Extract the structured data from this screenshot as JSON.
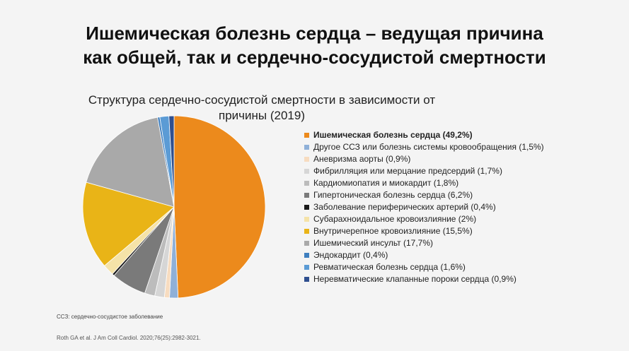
{
  "title_lines": [
    "Ишемическая болезнь сердца – ведущая причина",
    "как общей, так и сердечно-сосудистой смертности"
  ],
  "chart_title_lines": [
    "Структура сердечно-сосудистой смертности в зависимости от",
    "причины (2019)"
  ],
  "chart_data": {
    "type": "pie",
    "title": "Структура сердечно-сосудистой смертности в зависимости от причины (2019)",
    "legend_position": "right",
    "slices": [
      {
        "label": "Ишемическая болезнь сердца (49,2%)",
        "value": 49.2,
        "color": "#ec8a1c",
        "bold": true
      },
      {
        "label": "Другое ССЗ или болезнь системы кровообращения (1,5%)",
        "value": 1.5,
        "color": "#8fb0d8"
      },
      {
        "label": "Аневризма аорты (0,9%)",
        "value": 0.9,
        "color": "#f7dcc0"
      },
      {
        "label": "Фибрилляция или мерцание предсердий (1,7%)",
        "value": 1.7,
        "color": "#d6d6d6"
      },
      {
        "label": "Кардиомиопатия и миокардит (1,8%)",
        "value": 1.8,
        "color": "#bcbcbc"
      },
      {
        "label": "Гипертоническая болезнь сердца (6,2%)",
        "value": 6.2,
        "color": "#7a7a7a"
      },
      {
        "label": "Заболевание периферических артерий (0,4%)",
        "value": 0.4,
        "color": "#1a1a1a"
      },
      {
        "label": "Субарахноидальное кровоизлияние (2%)",
        "value": 2.0,
        "color": "#f5e3a8"
      },
      {
        "label": "Внутричерепное кровоизлияние (15,5%)",
        "value": 15.5,
        "color": "#e9b417"
      },
      {
        "label": "Ишемический инсульт (17,7%)",
        "value": 17.7,
        "color": "#a9a9a9"
      },
      {
        "label": "Эндокардит (0,4%)",
        "value": 0.4,
        "color": "#3f7fbf"
      },
      {
        "label": "Ревматическая болезнь сердца (1,6%)",
        "value": 1.6,
        "color": "#5b9bd5"
      },
      {
        "label": "Неревматические клапанные пороки сердца (0,9%)",
        "value": 0.9,
        "color": "#2f4f8f"
      }
    ]
  },
  "footnote": "ССЗ: сердечно-сосудистое заболевание",
  "source": "Roth GA et al. J Am Coll Cardiol. 2020;76(25):2982-3021."
}
